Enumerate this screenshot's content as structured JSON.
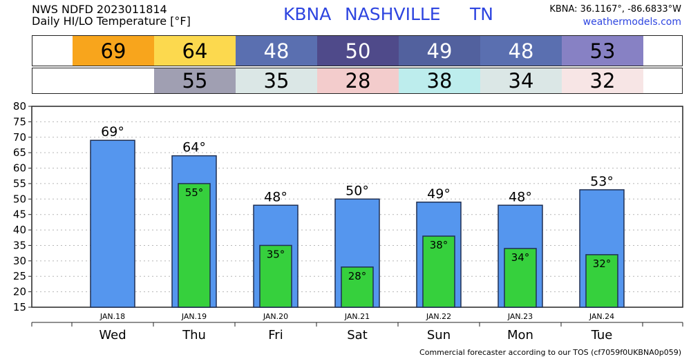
{
  "header": {
    "line1": "NWS NDFD 2023011814",
    "line2": "Daily HI/LO Temperature [°F]",
    "station_id": "KBNA",
    "station_name": "NASHVILLE",
    "state": "TN",
    "coords": "KBNA: 36.1167°, -86.6833°W",
    "site": "weathermodels.com"
  },
  "hi_strip": [
    {
      "value": "69",
      "color": "#f8a51c",
      "text_color": "#000000"
    },
    {
      "value": "64",
      "color": "#fcd94e",
      "text_color": "#000000"
    },
    {
      "value": "48",
      "color": "#5a6fb0",
      "text_color": "#ffffff"
    },
    {
      "value": "50",
      "color": "#4f4a8a",
      "text_color": "#ffffff"
    },
    {
      "value": "49",
      "color": "#52619e",
      "text_color": "#ffffff"
    },
    {
      "value": "48",
      "color": "#5a6fb0",
      "text_color": "#ffffff"
    },
    {
      "value": "53",
      "color": "#8781c4",
      "text_color": "#000000"
    }
  ],
  "lo_strip": [
    {
      "value": "",
      "color": "#ffffff",
      "text_color": "#000000"
    },
    {
      "value": "55",
      "color": "#a09fb2",
      "text_color": "#000000"
    },
    {
      "value": "35",
      "color": "#dbe7e6",
      "text_color": "#000000"
    },
    {
      "value": "28",
      "color": "#f3cccc",
      "text_color": "#000000"
    },
    {
      "value": "38",
      "color": "#bdeded",
      "text_color": "#000000"
    },
    {
      "value": "34",
      "color": "#dbe7e6",
      "text_color": "#000000"
    },
    {
      "value": "32",
      "color": "#f7e5e5",
      "text_color": "#000000"
    }
  ],
  "chart_data": {
    "type": "bar",
    "categories": [
      "JAN.18",
      "JAN.19",
      "JAN.20",
      "JAN.21",
      "JAN.22",
      "JAN.23",
      "JAN.24"
    ],
    "days": [
      "Wed",
      "Thu",
      "Fri",
      "Sat",
      "Sun",
      "Mon",
      "Tue"
    ],
    "series": [
      {
        "values": [
          69,
          64,
          48,
          50,
          49,
          48,
          53
        ],
        "color": "#5596ee"
      },
      {
        "values": [
          null,
          55,
          35,
          28,
          38,
          34,
          32
        ],
        "color": "#36d03d"
      }
    ],
    "hi_labels": [
      "69°",
      "64°",
      "48°",
      "50°",
      "49°",
      "48°",
      "53°"
    ],
    "lo_labels": [
      "",
      "55°",
      "35°",
      "28°",
      "38°",
      "34°",
      "32°"
    ],
    "yticks": [
      "15",
      "20",
      "25",
      "30",
      "35",
      "40",
      "45",
      "50",
      "55",
      "60",
      "65",
      "70",
      "75",
      "80"
    ],
    "ylim": [
      15,
      80
    ],
    "grid": true
  },
  "footer": "Commercial forecaster according to our TOS (cf7059f0UKBNA0p059)"
}
